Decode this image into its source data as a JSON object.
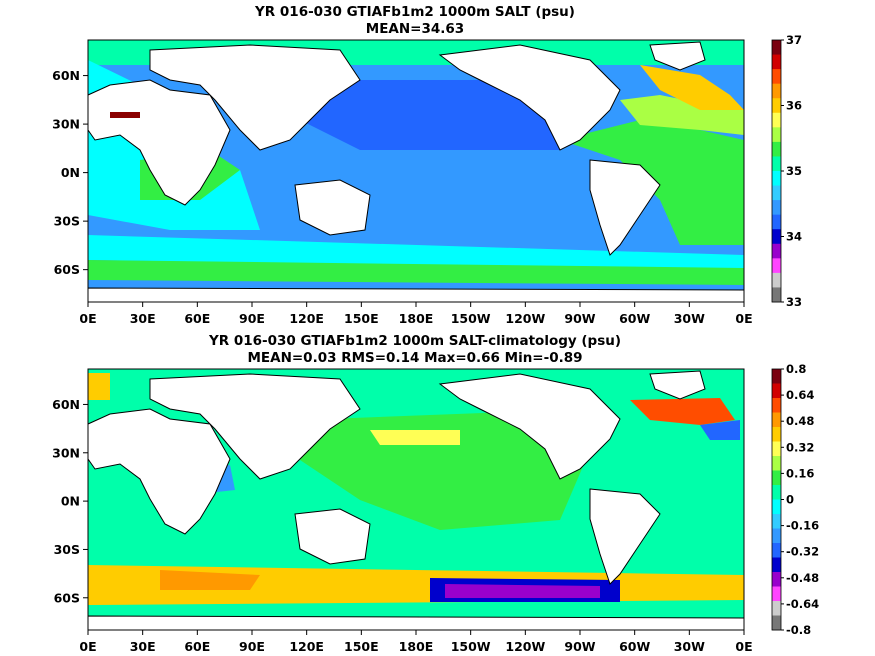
{
  "panels": [
    {
      "title_line1": "YR 016-030 GTIAFb1m2 1000m SALT (psu)",
      "title_line2": "MEAN=34.63",
      "x_ticks": [
        "0E",
        "30E",
        "60E",
        "90E",
        "120E",
        "150E",
        "180E",
        "150W",
        "120W",
        "90W",
        "60W",
        "30W",
        "0E"
      ],
      "y_ticks": [
        "60N",
        "30N",
        "0N",
        "30S",
        "60S"
      ],
      "colorbar": {
        "labels": [
          "37",
          "36",
          "35",
          "34",
          "33"
        ],
        "colors": [
          "#7a0010",
          "#d10000",
          "#ff4d00",
          "#ff9900",
          "#ffcc00",
          "#ffff55",
          "#aaff44",
          "#33ee44",
          "#00ffaa",
          "#00ffff",
          "#33ccff",
          "#3399ff",
          "#2266ff",
          "#0000cc",
          "#9900cc",
          "#ff44ff",
          "#cccccc",
          "#777777"
        ]
      },
      "field_colors": {
        "land": "#ffffff",
        "pacific": "#3399ff",
        "atlantic": "#33ee44",
        "indian": "#00ffff",
        "southern": "#3399ff",
        "arctic": "#00ffaa",
        "mediterranean": "#8b0000",
        "north_atlantic": "#ffcc00"
      }
    },
    {
      "title_line1": "YR 016-030 GTIAFb1m2 1000m SALT-climatology (psu)",
      "title_line2": "MEAN=0.03   RMS=0.14   Max=0.66   Min=-0.89",
      "x_ticks": [
        "0E",
        "30E",
        "60E",
        "90E",
        "120E",
        "150E",
        "180E",
        "150W",
        "120W",
        "90W",
        "60W",
        "30W",
        "0E"
      ],
      "y_ticks": [
        "60N",
        "30N",
        "0N",
        "30S",
        "60S"
      ],
      "colorbar": {
        "labels": [
          "0.8",
          "0.64",
          "0.48",
          "0.32",
          "0.16",
          "0",
          "-0.16",
          "-0.32",
          "-0.48",
          "-0.64",
          "-0.8"
        ],
        "colors": [
          "#7a0010",
          "#d10000",
          "#ff4d00",
          "#ff9900",
          "#ffcc00",
          "#ffff55",
          "#aaff44",
          "#33ee44",
          "#00ffaa",
          "#00ffff",
          "#33ccff",
          "#3399ff",
          "#2266ff",
          "#0000cc",
          "#9900cc",
          "#ff44ff",
          "#cccccc",
          "#777777"
        ]
      },
      "field_colors": {
        "land": "#ffffff",
        "background": "#00ffaa",
        "positive": "#33ee44",
        "southern": "#ffcc00",
        "strong_positive": "#ff4d00",
        "negative": "#0000cc",
        "strong_negative": "#9900cc"
      }
    }
  ]
}
